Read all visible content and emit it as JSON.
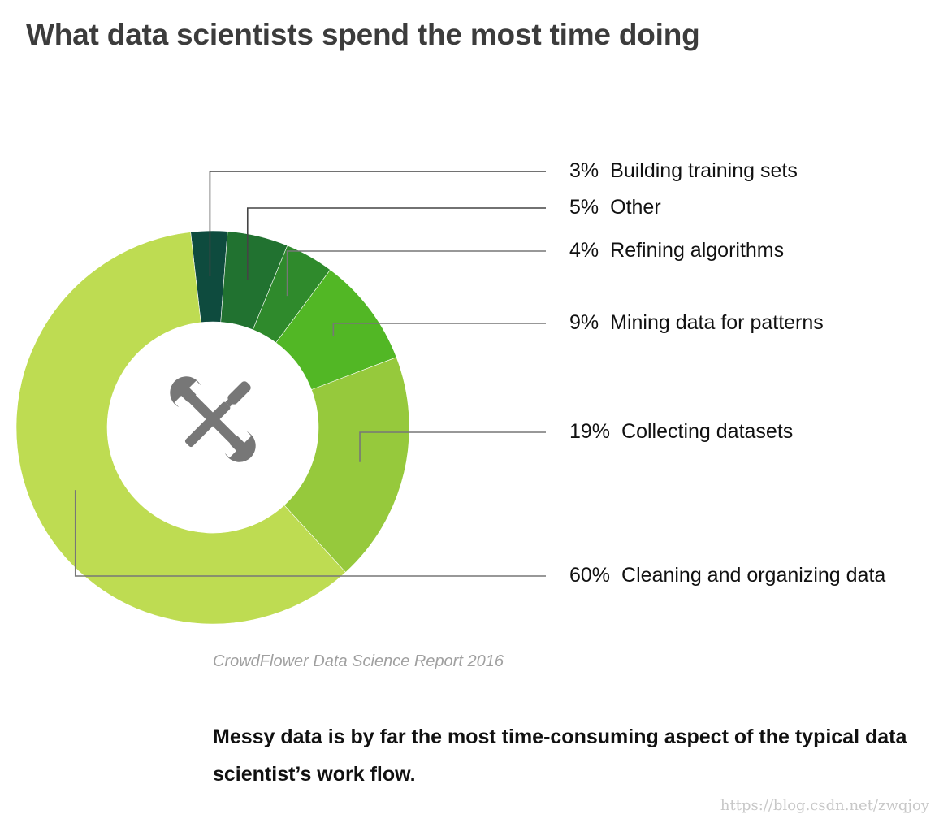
{
  "chart_data": {
    "type": "pie",
    "variant": "donut",
    "title": "What data scientists spend the most time doing",
    "slices": [
      {
        "label": "Building training sets",
        "value": 3,
        "value_label": "3%",
        "color": "#0e4b3e"
      },
      {
        "label": "Other",
        "value": 5,
        "value_label": "5%",
        "color": "#217230"
      },
      {
        "label": "Refining algorithms",
        "value": 4,
        "value_label": "4%",
        "color": "#2f8a2c"
      },
      {
        "label": "Mining data for patterns",
        "value": 9,
        "value_label": "9%",
        "color": "#52b725"
      },
      {
        "label": "Collecting datasets",
        "value": 19,
        "value_label": "19%",
        "color": "#96c93c"
      },
      {
        "label": "Cleaning and organizing data",
        "value": 60,
        "value_label": "60%",
        "color": "#bedc52"
      }
    ],
    "legend_placement": "right",
    "center_icon": "tools-icon",
    "center_icon_color": "#777777"
  },
  "source": "CrowdFlower Data Science Report 2016",
  "caption": "Messy data is by far the most time-consuming aspect of the typical data scientist’s work flow.",
  "watermark": "https://blog.csdn.net/zwqjoy"
}
